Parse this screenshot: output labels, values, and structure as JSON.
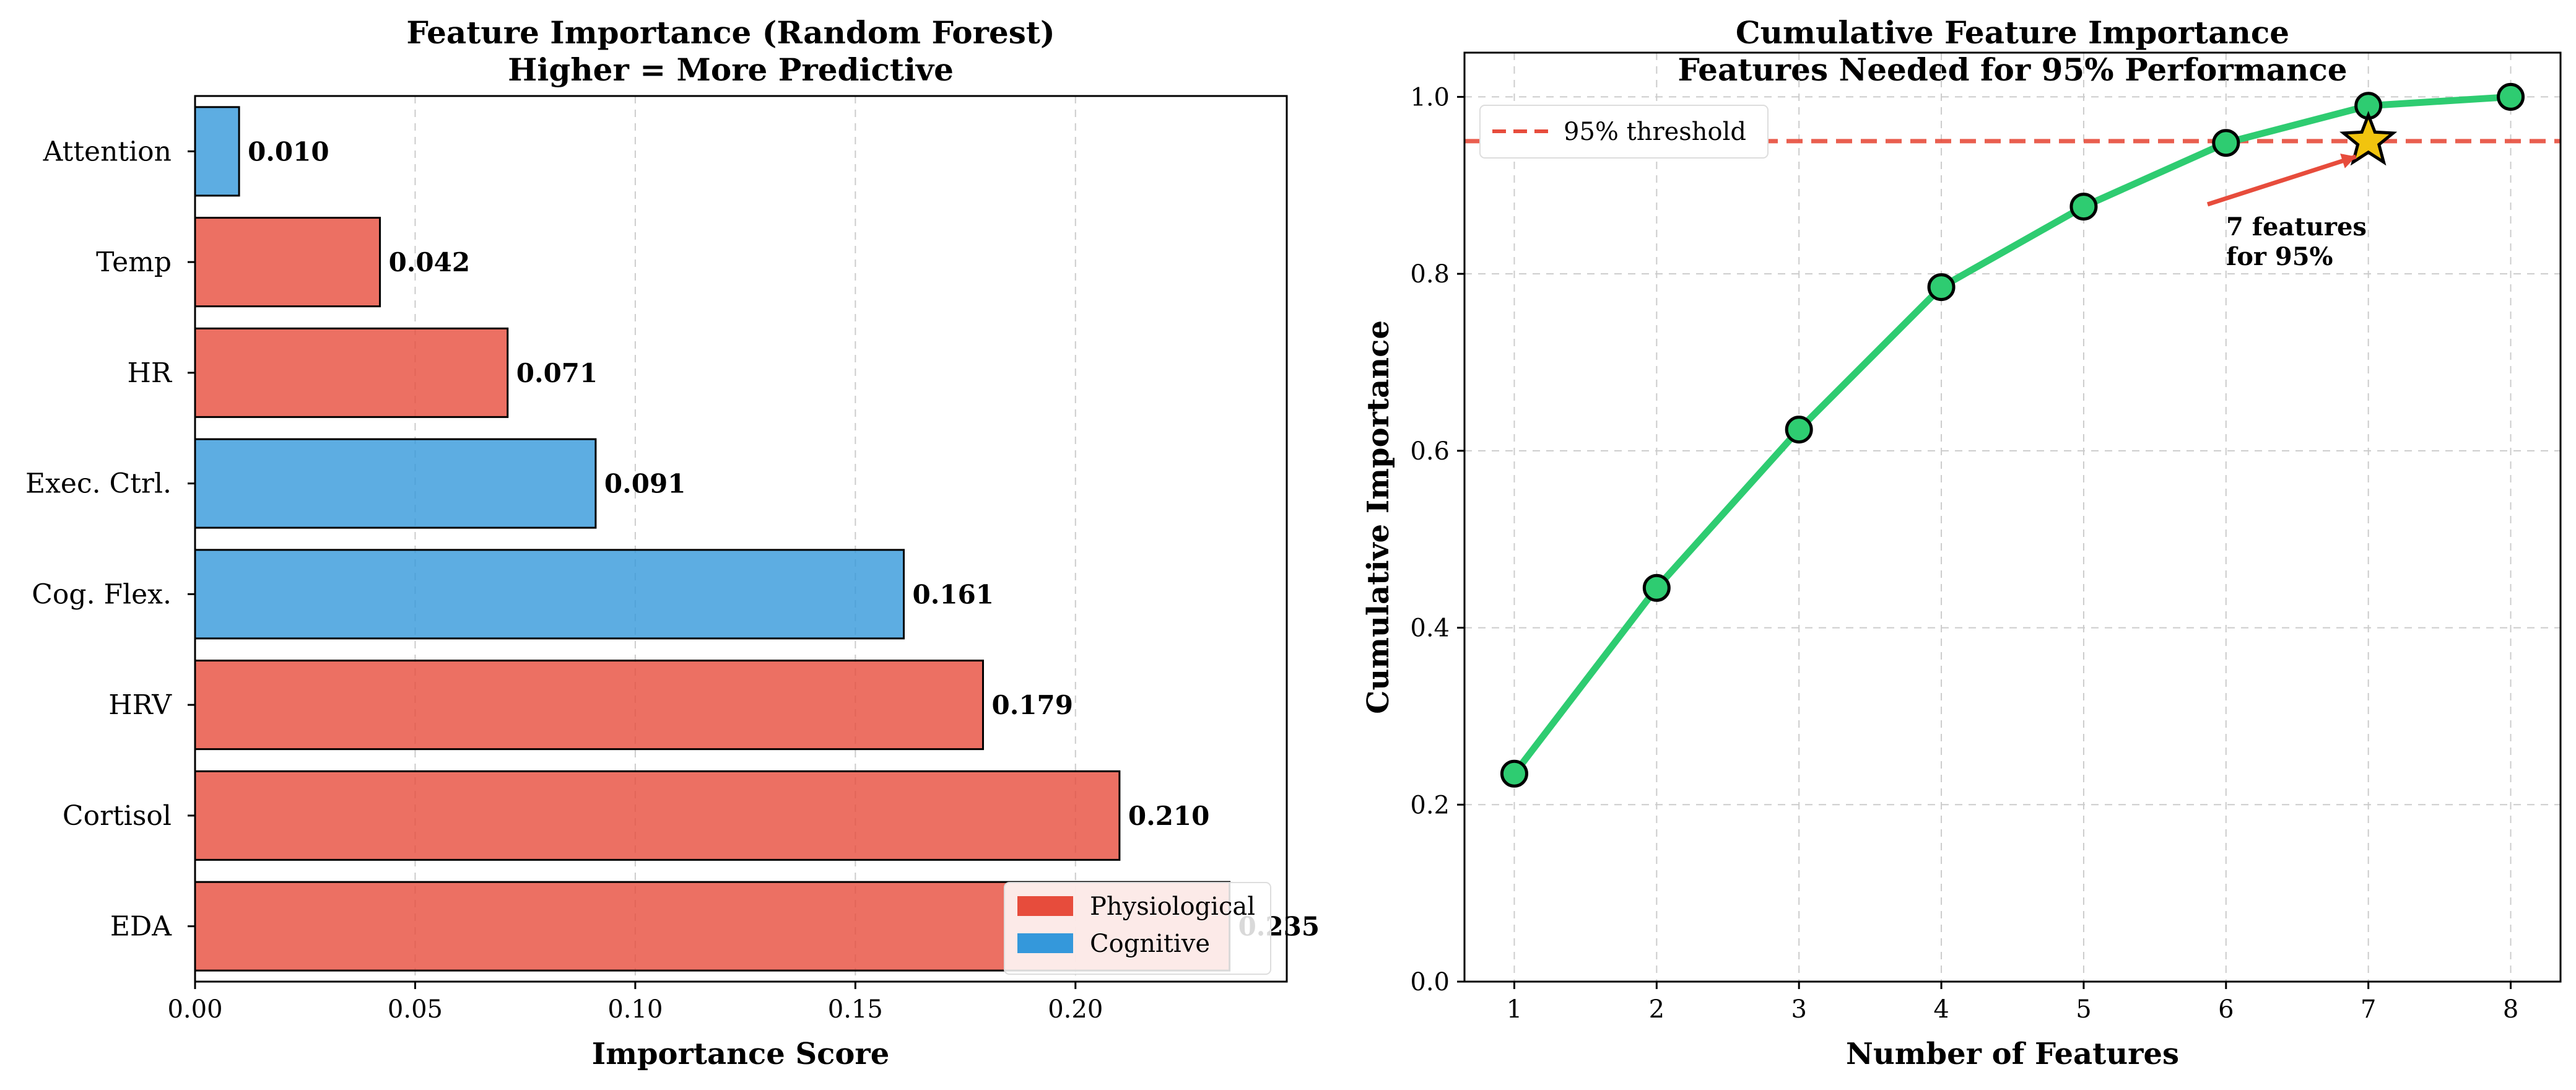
{
  "chart_data": [
    {
      "type": "bar",
      "orientation": "horizontal",
      "title": [
        "Feature Importance (Random Forest)",
        "Higher = More Predictive"
      ],
      "xlabel": "Importance Score",
      "ylabel": "",
      "xlim": [
        0,
        0.248
      ],
      "xticks": [
        "0.00",
        "0.05",
        "0.10",
        "0.15",
        "0.20"
      ],
      "xtick_values": [
        0,
        0.05,
        0.1,
        0.15,
        0.2
      ],
      "grid": true,
      "legend_position": "bottom-right",
      "categories": [
        "Attention",
        "Temp",
        "HR",
        "Exec. Ctrl.",
        "Cog. Flex.",
        "HRV",
        "Cortisol",
        "EDA"
      ],
      "values": [
        0.01,
        0.042,
        0.071,
        0.091,
        0.161,
        0.179,
        0.21,
        0.235
      ],
      "value_labels": [
        "0.010",
        "0.042",
        "0.071",
        "0.091",
        "0.161",
        "0.179",
        "0.210",
        "0.235"
      ],
      "groups": [
        "Cognitive",
        "Physiological",
        "Physiological",
        "Cognitive",
        "Cognitive",
        "Physiological",
        "Physiological",
        "Physiological"
      ],
      "legend": [
        {
          "name": "Physiological",
          "color": "#e74c3c"
        },
        {
          "name": "Cognitive",
          "color": "#3498db"
        }
      ]
    },
    {
      "type": "line",
      "title": [
        "Cumulative Feature Importance",
        "Features Needed for 95% Performance"
      ],
      "xlabel": "Number of Features",
      "ylabel": "Cumulative Importance",
      "xlim": [
        0.65,
        8.35
      ],
      "ylim": [
        0,
        1.05
      ],
      "xticks": [
        "1",
        "2",
        "3",
        "4",
        "5",
        "6",
        "7",
        "8"
      ],
      "xtick_values": [
        1,
        2,
        3,
        4,
        5,
        6,
        7,
        8
      ],
      "yticks": [
        "0.0",
        "0.2",
        "0.4",
        "0.6",
        "0.8",
        "1.0"
      ],
      "ytick_values": [
        0,
        0.2,
        0.4,
        0.6,
        0.8,
        1.0
      ],
      "grid": true,
      "legend_position": "top-left",
      "series": [
        {
          "x": [
            1,
            2,
            3,
            4,
            5,
            6,
            7,
            8
          ],
          "values": [
            0.235,
            0.445,
            0.624,
            0.785,
            0.876,
            0.948,
            0.99,
            1.0
          ],
          "color": "#2ecc71"
        }
      ],
      "threshold": {
        "value": 0.95,
        "label": "95% threshold",
        "color": "#e74c3c"
      },
      "marker_star": {
        "x": 7,
        "y": 0.95,
        "color": "#f1c40f"
      },
      "annotation": {
        "text": [
          "7 features",
          "for 95%"
        ],
        "arrow_color": "#e74c3c"
      }
    }
  ]
}
